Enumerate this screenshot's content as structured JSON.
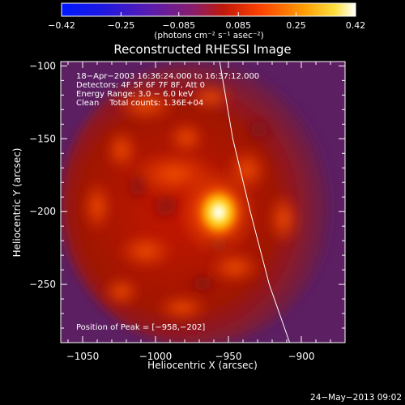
{
  "chart_data": {
    "type": "heatmap",
    "title": "Reconstructed RHESSI Image",
    "xlabel": "Heliocentric X (arcsec)",
    "ylabel": "Heliocentric Y (arcsec)",
    "xlim": [
      -1065,
      -870
    ],
    "ylim": [
      -290,
      -97
    ],
    "x_ticks": [
      -1050,
      -1000,
      -950,
      -900
    ],
    "y_ticks": [
      -250,
      -200,
      -150,
      -100
    ],
    "x_tick_labels": [
      "−1050",
      "−1000",
      "−950",
      "−900"
    ],
    "y_tick_labels": [
      "−250",
      "−200",
      "−150",
      "−100"
    ],
    "colorbar": {
      "range": [
        -0.42,
        0.42
      ],
      "ticks": [
        -0.42,
        -0.25,
        -0.085,
        0.085,
        0.25,
        0.42
      ],
      "tick_labels": [
        "−0.42",
        "−0.25",
        "−0.085",
        "0.085",
        "0.25",
        "0.42"
      ],
      "units_label": "(photons cm⁻² s⁻¹ asec⁻²)"
    },
    "annotations": [
      "18−Apr−2003 16:36:24.000 to 16:37:12.000",
      "Detectors: 4F 5F 6F 7F 8F, Att 0",
      "Energy Range: 3.0 − 6.0 keV",
      "Clean    Total counts: 1.36E+04"
    ],
    "peak_label": "Position of Peak = [−958,−202]",
    "peak": [
      -958,
      -202
    ],
    "limb_line": [
      [
        -956,
        -97
      ],
      [
        -947,
        -150
      ],
      [
        -935,
        -200
      ],
      [
        -922,
        -250
      ],
      [
        -908,
        -290
      ]
    ],
    "timestamp": "24−May−2013 09:02"
  }
}
